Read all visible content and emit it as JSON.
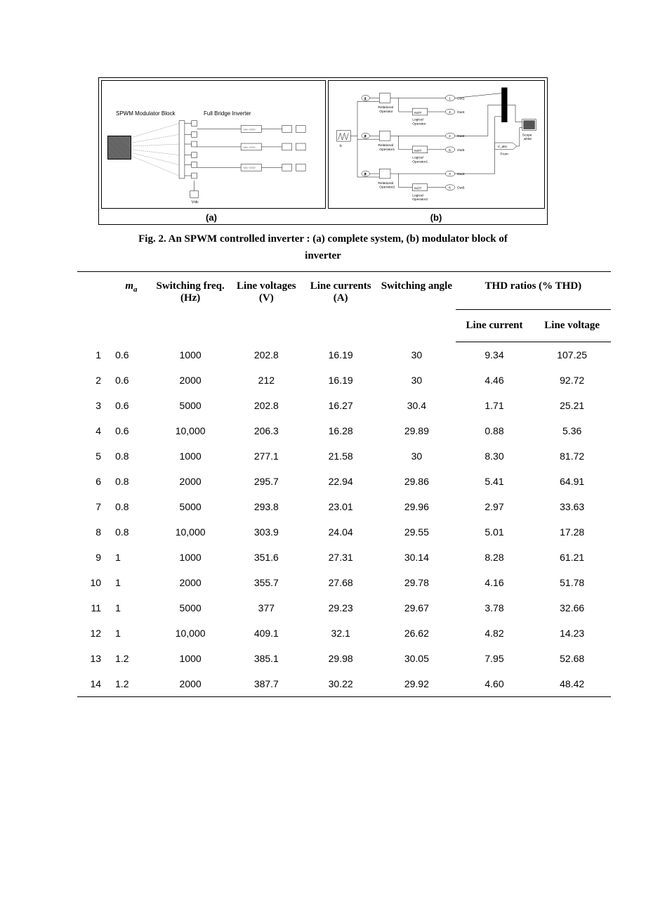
{
  "figure": {
    "caption_line1": "Fig. 2. An SPWM controlled inverter : (a) complete system, (b) modulator block of",
    "caption_line2": "inverter",
    "label_a": "(a)",
    "label_b": "(b)",
    "spwm_text": "SPWM Modulator Block",
    "fbi_text": "Full Bridge Inverter",
    "border_color": "#000000",
    "background": "#ffffff",
    "vdc_label": "V_dc",
    "fc_label": "fc",
    "vabc_label": "V_abc",
    "from_label": "From",
    "scope_label": "Scope",
    "white_label": "white",
    "out1": "Out1",
    "out2": "Out2",
    "out3": "Out3",
    "out4": "Out4",
    "out5": "Out5",
    "out6": "Out6",
    "not_label": "NOT",
    "rel_op": "Relational",
    "rel_op2": "Operator",
    "log_op": "Logical",
    "log_op2": "Operator"
  },
  "table": {
    "type": "table",
    "headers": {
      "idx": "",
      "ma_main": "m",
      "ma_sub": "a",
      "switching_freq": "Switching freq. (Hz)",
      "line_voltages": "Line voltages (V)",
      "line_currents": "Line currents (A)",
      "switching_angle": "Switching angle",
      "thd_group": "THD ratios (% THD)",
      "thd_current": "Line current",
      "thd_voltage": "Line voltage"
    },
    "rows": [
      [
        "1",
        "0.6",
        "1000",
        "202.8",
        "16.19",
        "30",
        "9.34",
        "107.25"
      ],
      [
        "2",
        "0.6",
        "2000",
        "212",
        "16.19",
        "30",
        "4.46",
        "92.72"
      ],
      [
        "3",
        "0.6",
        "5000",
        "202.8",
        "16.27",
        "30.4",
        "1.71",
        "25.21"
      ],
      [
        "4",
        "0.6",
        "10,000",
        "206.3",
        "16.28",
        "29.89",
        "0.88",
        "5.36"
      ],
      [
        "5",
        "0.8",
        "1000",
        "277.1",
        "21.58",
        "30",
        "8.30",
        "81.72"
      ],
      [
        "6",
        "0.8",
        "2000",
        "295.7",
        "22.94",
        "29.86",
        "5.41",
        "64.91"
      ],
      [
        "7",
        "0.8",
        "5000",
        "293.8",
        "23.01",
        "29.96",
        "2.97",
        "33.63"
      ],
      [
        "8",
        "0.8",
        "10,000",
        "303.9",
        "24.04",
        "29.55",
        "5.01",
        "17.28"
      ],
      [
        "9",
        "1",
        "1000",
        "351.6",
        "27.31",
        "30.14",
        "8.28",
        "61.21"
      ],
      [
        "10",
        "1",
        "2000",
        "355.7",
        "27.68",
        "29.78",
        "4.16",
        "51.78"
      ],
      [
        "11",
        "1",
        "5000",
        "377",
        "29.23",
        "29.67",
        "3.78",
        "32.66"
      ],
      [
        "12",
        "1",
        "10,000",
        "409.1",
        "32.1",
        "26.62",
        "4.82",
        "14.23"
      ],
      [
        "13",
        "1.2",
        "1000",
        "385.1",
        "29.98",
        "30.05",
        "7.95",
        "52.68"
      ],
      [
        "14",
        "1.2",
        "2000",
        "387.7",
        "30.22",
        "29.92",
        "4.60",
        "48.42"
      ]
    ],
    "text_color": "#000000",
    "border_color": "#000000",
    "header_font": "Times New Roman",
    "body_font": "Arial",
    "header_fontsize_pt": 11,
    "body_fontsize_pt": 10
  }
}
